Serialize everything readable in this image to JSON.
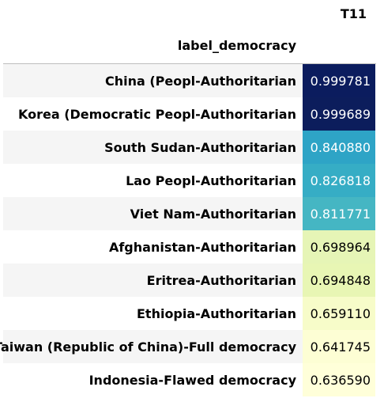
{
  "table": {
    "column_header": "T11",
    "index_name": "label_democracy",
    "rows": [
      {
        "label": "China (Peopl-Authoritarian",
        "value": "0.999781",
        "bg": "#0b1c5e",
        "fg": "#ffffff"
      },
      {
        "label": "Korea (Democratic Peopl-Authoritarian",
        "value": "0.999689",
        "bg": "#0c1d5c",
        "fg": "#ffffff"
      },
      {
        "label": "South Sudan-Authoritarian",
        "value": "0.840880",
        "bg": "#2ea4c6",
        "fg": "#ffffff"
      },
      {
        "label": "Lao Peopl-Authoritarian",
        "value": "0.826818",
        "bg": "#36adc5",
        "fg": "#ffffff"
      },
      {
        "label": "Viet Nam-Authoritarian",
        "value": "0.811771",
        "bg": "#45b6c3",
        "fg": "#ffffff"
      },
      {
        "label": "Afghanistan-Authoritarian",
        "value": "0.698964",
        "bg": "#e6f5b6",
        "fg": "#000000"
      },
      {
        "label": "Eritrea-Authoritarian",
        "value": "0.694848",
        "bg": "#e8f6b4",
        "fg": "#000000"
      },
      {
        "label": "Ethiopia-Authoritarian",
        "value": "0.659110",
        "bg": "#f7fcc9",
        "fg": "#000000"
      },
      {
        "label": "Taiwan (Republic of China)-Full democracy",
        "value": "0.641745",
        "bg": "#fdfed4",
        "fg": "#000000"
      },
      {
        "label": "Indonesia-Flawed democracy",
        "value": "0.636590",
        "bg": "#ffffd9",
        "fg": "#000000"
      }
    ]
  }
}
